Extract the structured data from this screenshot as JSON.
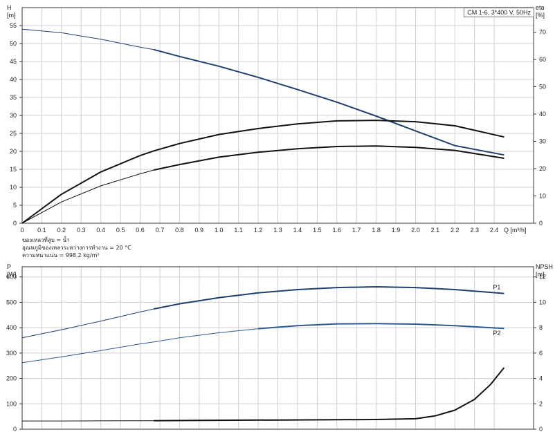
{
  "header": {
    "pump_label": "CM 1-6, 3*400 V, 50Hz"
  },
  "medium_info": [
    "ของเหลวที่สูบ = น้ำ",
    "อุณหภูมิของเหลวระหว่างการทำงาน = 20 °C",
    "ความหนาแน่น = 998.2 kg/m³"
  ],
  "chart_data": [
    {
      "type": "line",
      "xlabel": "Q [m³/h]",
      "ylabel": "H\n[m]",
      "y2label": "eta\n[%]",
      "xlim": [
        0,
        2.6
      ],
      "ylim": [
        0,
        60
      ],
      "y2lim": [
        0,
        79
      ],
      "x_ticks": [
        "0",
        "0.1",
        "0.2",
        "0.3",
        "0.4",
        "0.5",
        "0.6",
        "0.7",
        "0.8",
        "0.9",
        "1.0",
        "1.1",
        "1.2",
        "1.3",
        "1.4",
        "1.5",
        "1.6",
        "1.7",
        "1.8",
        "1.9",
        "2.0",
        "2.1",
        "2.2",
        "2.3",
        "2.4"
      ],
      "y_ticks": [
        0,
        5,
        10,
        15,
        20,
        25,
        30,
        35,
        40,
        45,
        50,
        55
      ],
      "y2_ticks": [
        0,
        10,
        20,
        30,
        40,
        50,
        60,
        70
      ],
      "grid": true,
      "series": [
        {
          "axis": "left",
          "color": "#1d3f6e",
          "duty_from": 0.67,
          "x": [
            0,
            0.2,
            0.4,
            0.6,
            0.67,
            0.8,
            1.0,
            1.2,
            1.4,
            1.6,
            1.8,
            2.0,
            2.2,
            2.45
          ],
          "y": [
            54,
            53,
            51.2,
            49,
            48.3,
            46.4,
            43.7,
            40.6,
            37.2,
            33.7,
            29.8,
            25.7,
            21.6,
            19
          ]
        },
        {
          "axis": "right",
          "color": "#111111",
          "duty_from": 0,
          "x": [
            0,
            0.2,
            0.4,
            0.6,
            0.67,
            0.8,
            1.0,
            1.2,
            1.4,
            1.6,
            1.8,
            2.0,
            2.2,
            2.45
          ],
          "y": [
            0,
            10.6,
            18.8,
            24.8,
            26.5,
            29.2,
            32.5,
            34.7,
            36.4,
            37.5,
            37.7,
            37.2,
            35.7,
            31.6
          ]
        },
        {
          "axis": "right",
          "color": "#111111",
          "duty_from": 0.67,
          "x": [
            0,
            0.2,
            0.4,
            0.6,
            0.67,
            0.8,
            1.0,
            1.2,
            1.4,
            1.6,
            1.8,
            2.0,
            2.2,
            2.45
          ],
          "y": [
            0,
            7.8,
            13.7,
            18.1,
            19.5,
            21.5,
            24.2,
            26,
            27.3,
            28.1,
            28.3,
            27.8,
            26.7,
            23.8
          ]
        }
      ]
    },
    {
      "type": "line",
      "xlabel": "",
      "ylabel": "P\n[W]",
      "y2label": "NPSH\n[m]",
      "xlim": [
        0,
        2.6
      ],
      "ylim": [
        0,
        640
      ],
      "y2lim": [
        0,
        12.8
      ],
      "y_ticks": [
        0,
        100,
        200,
        300,
        400,
        500,
        600
      ],
      "y2_ticks": [
        0,
        2,
        4,
        6,
        8,
        10,
        12
      ],
      "grid": true,
      "series": [
        {
          "name": "P1",
          "axis": "left",
          "color": "#1d3f6e",
          "duty_from": 0.67,
          "x": [
            0,
            0.2,
            0.4,
            0.6,
            0.67,
            0.8,
            1.0,
            1.2,
            1.4,
            1.6,
            1.8,
            2.0,
            2.2,
            2.45
          ],
          "y": [
            360,
            392,
            426,
            462,
            474,
            494,
            518,
            537,
            550,
            558,
            561,
            558,
            550,
            535
          ]
        },
        {
          "name": "P2",
          "axis": "left",
          "color": "#2d5a8e",
          "duty_from": 1.2,
          "x": [
            0,
            0.2,
            0.4,
            0.6,
            0.67,
            0.8,
            1.0,
            1.2,
            1.4,
            1.6,
            1.8,
            2.0,
            2.2,
            2.45
          ],
          "y": [
            262,
            285,
            310,
            336,
            344,
            360,
            380,
            396,
            408,
            415,
            416,
            414,
            408,
            397
          ]
        },
        {
          "axis": "right",
          "color": "#111111",
          "duty_from": 0.67,
          "x": [
            0,
            0.2,
            0.4,
            0.67,
            1.0,
            1.4,
            1.8,
            2.0,
            2.1,
            2.2,
            2.3,
            2.38,
            2.45
          ],
          "y": [
            0.65,
            0.65,
            0.66,
            0.67,
            0.7,
            0.73,
            0.76,
            0.82,
            1.05,
            1.5,
            2.35,
            3.5,
            4.85
          ]
        }
      ]
    }
  ]
}
